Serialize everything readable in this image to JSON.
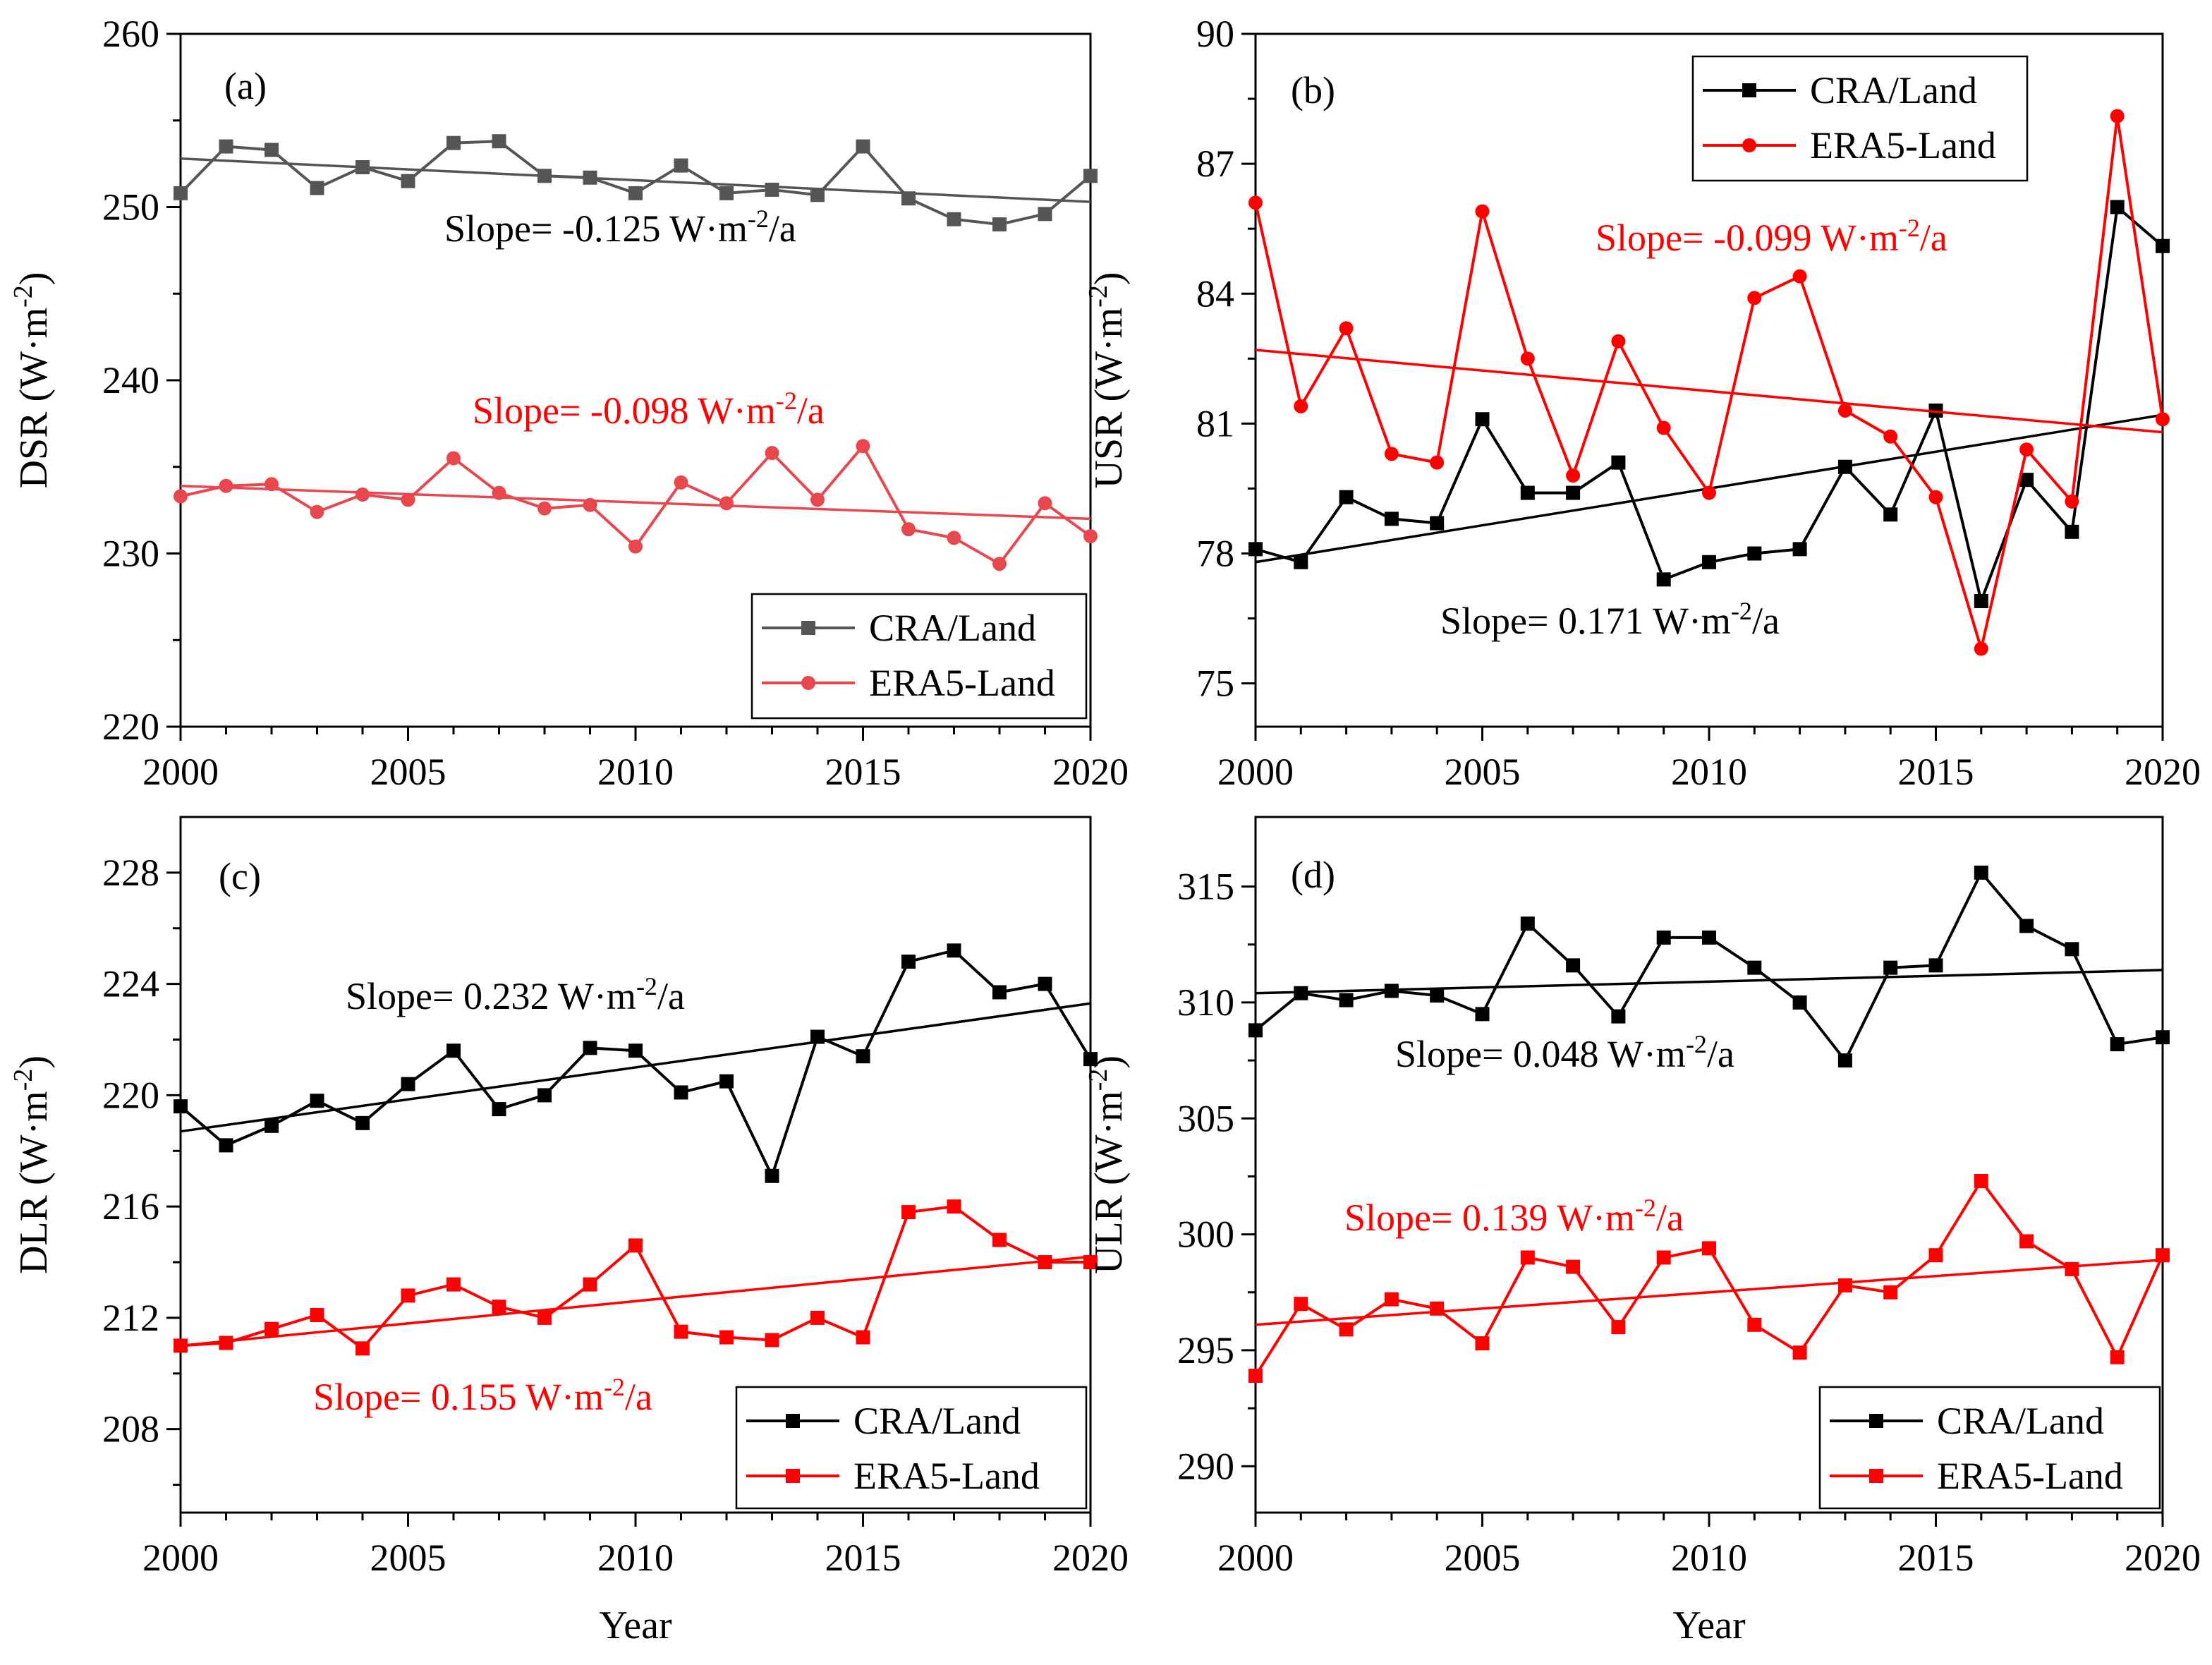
{
  "figure": {
    "shared_xlabel": "Year"
  },
  "chart_data": [
    {
      "id": "a",
      "type": "line",
      "panel_label": "(a)",
      "ylabel_base": "DSR (W·m",
      "ylabel_exp": "-2",
      "ylabel_close": ")",
      "xlabel": "",
      "xlim": [
        2000,
        2020
      ],
      "ylim": [
        220,
        260
      ],
      "xticks": [
        2000,
        2005,
        2010,
        2015,
        2020
      ],
      "yticks": [
        220,
        230,
        240,
        250,
        260
      ],
      "legend_position": "bottom-right",
      "x": [
        2000,
        2001,
        2002,
        2003,
        2004,
        2005,
        2006,
        2007,
        2008,
        2009,
        2010,
        2011,
        2012,
        2013,
        2014,
        2015,
        2016,
        2017,
        2018,
        2019,
        2020
      ],
      "series": [
        {
          "name": "CRA/Land",
          "color": "#555555",
          "marker": "square",
          "values": [
            250.8,
            253.5,
            253.3,
            251.1,
            252.3,
            251.5,
            253.7,
            253.8,
            251.8,
            251.7,
            250.8,
            252.4,
            250.8,
            251.0,
            250.7,
            253.5,
            250.5,
            249.3,
            249.0,
            249.6,
            251.8
          ],
          "trend": [
            252.8,
            250.3
          ],
          "slope_text": "Slope= -0.125 W·m",
          "slope_exp": "-2",
          "slope_tail": "/a",
          "slope_color": "#000000"
        },
        {
          "name": "ERA5-Land",
          "color": "#e8474e",
          "marker": "circle",
          "values": [
            233.3,
            233.9,
            234.0,
            232.4,
            233.4,
            233.1,
            235.5,
            233.5,
            232.6,
            232.8,
            230.4,
            234.1,
            232.9,
            235.8,
            233.1,
            236.2,
            231.4,
            230.9,
            229.4,
            232.9,
            231.0
          ],
          "trend": [
            233.9,
            232.0
          ],
          "slope_text": "Slope= -0.098 W·m",
          "slope_exp": "-2",
          "slope_tail": "/a",
          "slope_color": "#ff0000"
        }
      ]
    },
    {
      "id": "b",
      "type": "line",
      "panel_label": "(b)",
      "ylabel_base": "USR (W·m",
      "ylabel_exp": "-2",
      "ylabel_close": ")",
      "xlabel": "",
      "xlim": [
        2000,
        2020
      ],
      "ylim": [
        74,
        90
      ],
      "xticks": [
        2000,
        2005,
        2010,
        2015,
        2020
      ],
      "yticks": [
        75,
        78,
        81,
        84,
        87,
        90
      ],
      "legend_position": "top-right",
      "x": [
        2000,
        2001,
        2002,
        2003,
        2004,
        2005,
        2006,
        2007,
        2008,
        2009,
        2010,
        2011,
        2012,
        2013,
        2014,
        2015,
        2016,
        2017,
        2018,
        2019,
        2020
      ],
      "series": [
        {
          "name": "CRA/Land",
          "color": "#000000",
          "marker": "square",
          "values": [
            78.1,
            77.8,
            79.3,
            78.8,
            78.7,
            81.1,
            79.4,
            79.4,
            80.1,
            77.4,
            77.8,
            78.0,
            78.1,
            80.0,
            78.9,
            81.3,
            76.9,
            79.7,
            78.5,
            86.0,
            85.1
          ],
          "trend": [
            77.8,
            81.2
          ],
          "slope_text": "Slope= 0.171 W·m",
          "slope_exp": "-2",
          "slope_tail": "/a",
          "slope_color": "#000000"
        },
        {
          "name": "ERA5-Land",
          "color": "#ff0000",
          "marker": "circle",
          "values": [
            86.1,
            81.4,
            83.2,
            80.3,
            80.1,
            85.9,
            82.5,
            79.8,
            82.9,
            80.9,
            79.4,
            83.9,
            84.4,
            81.3,
            80.7,
            79.3,
            75.8,
            80.4,
            79.2,
            88.1,
            81.1
          ],
          "trend": [
            82.7,
            80.8
          ],
          "slope_text": "Slope= -0.099 W·m",
          "slope_exp": "-2",
          "slope_tail": "/a",
          "slope_color": "#ff0000"
        }
      ]
    },
    {
      "id": "c",
      "type": "line",
      "panel_label": "(c)",
      "ylabel_base": "DLR (W·m",
      "ylabel_exp": "-2",
      "ylabel_close": ")",
      "xlabel": "Year",
      "xlim": [
        2000,
        2020
      ],
      "ylim": [
        205,
        230
      ],
      "xticks": [
        2000,
        2005,
        2010,
        2015,
        2020
      ],
      "yticks": [
        208,
        212,
        216,
        220,
        224,
        228
      ],
      "legend_position": "bottom-right",
      "x": [
        2000,
        2001,
        2002,
        2003,
        2004,
        2005,
        2006,
        2007,
        2008,
        2009,
        2010,
        2011,
        2012,
        2013,
        2014,
        2015,
        2016,
        2017,
        2018,
        2019,
        2020
      ],
      "series": [
        {
          "name": "CRA/Land",
          "color": "#000000",
          "marker": "square",
          "values": [
            219.6,
            218.2,
            218.9,
            219.8,
            219.0,
            220.4,
            221.6,
            219.5,
            220.0,
            221.7,
            221.6,
            220.1,
            220.5,
            217.1,
            222.1,
            221.4,
            224.8,
            225.2,
            223.7,
            224.0,
            221.3
          ],
          "trend": [
            218.7,
            223.3
          ],
          "slope_text": "Slope= 0.232 W·m",
          "slope_exp": "-2",
          "slope_tail": "/a",
          "slope_color": "#000000"
        },
        {
          "name": "ERA5-Land",
          "color": "#ff0000",
          "marker": "square",
          "values": [
            211.0,
            211.1,
            211.6,
            212.1,
            210.9,
            212.8,
            213.2,
            212.4,
            212.0,
            213.2,
            214.6,
            211.5,
            211.3,
            211.2,
            212.0,
            211.3,
            215.8,
            216.0,
            214.8,
            214.0,
            214.0
          ],
          "trend": [
            211.0,
            214.2
          ],
          "slope_text": "Slope= 0.155 W·m",
          "slope_exp": "-2",
          "slope_tail": "/a",
          "slope_color": "#ff0000"
        }
      ]
    },
    {
      "id": "d",
      "type": "line",
      "panel_label": "(d)",
      "ylabel_base": "ULR (W·m",
      "ylabel_exp": "-2",
      "ylabel_close": ")",
      "xlabel": "Year",
      "xlim": [
        2000,
        2020
      ],
      "ylim": [
        288,
        318
      ],
      "xticks": [
        2000,
        2005,
        2010,
        2015,
        2020
      ],
      "yticks": [
        290,
        295,
        300,
        305,
        310,
        315
      ],
      "legend_position": "bottom-right",
      "x": [
        2000,
        2001,
        2002,
        2003,
        2004,
        2005,
        2006,
        2007,
        2008,
        2009,
        2010,
        2011,
        2012,
        2013,
        2014,
        2015,
        2016,
        2017,
        2018,
        2019,
        2020
      ],
      "series": [
        {
          "name": "CRA/Land",
          "color": "#000000",
          "marker": "square",
          "values": [
            308.8,
            310.4,
            310.1,
            310.5,
            310.3,
            309.5,
            313.4,
            311.6,
            309.4,
            312.8,
            312.8,
            311.5,
            310.0,
            307.5,
            311.5,
            311.6,
            315.6,
            313.3,
            312.3,
            308.2,
            308.5
          ],
          "trend": [
            310.4,
            311.4
          ],
          "slope_text": "Slope= 0.048 W·m",
          "slope_exp": "-2",
          "slope_tail": "/a",
          "slope_color": "#000000"
        },
        {
          "name": "ERA5-Land",
          "color": "#ff0000",
          "marker": "square",
          "values": [
            293.9,
            297.0,
            295.9,
            297.2,
            296.8,
            295.3,
            299.0,
            298.6,
            296.0,
            299.0,
            299.4,
            296.1,
            294.9,
            297.8,
            297.5,
            299.1,
            302.3,
            299.7,
            298.5,
            294.7,
            299.1
          ],
          "trend": [
            296.1,
            298.9
          ],
          "slope_text": "Slope= 0.139 W·m",
          "slope_exp": "-2",
          "slope_tail": "/a",
          "slope_color": "#ff0000"
        }
      ]
    }
  ]
}
